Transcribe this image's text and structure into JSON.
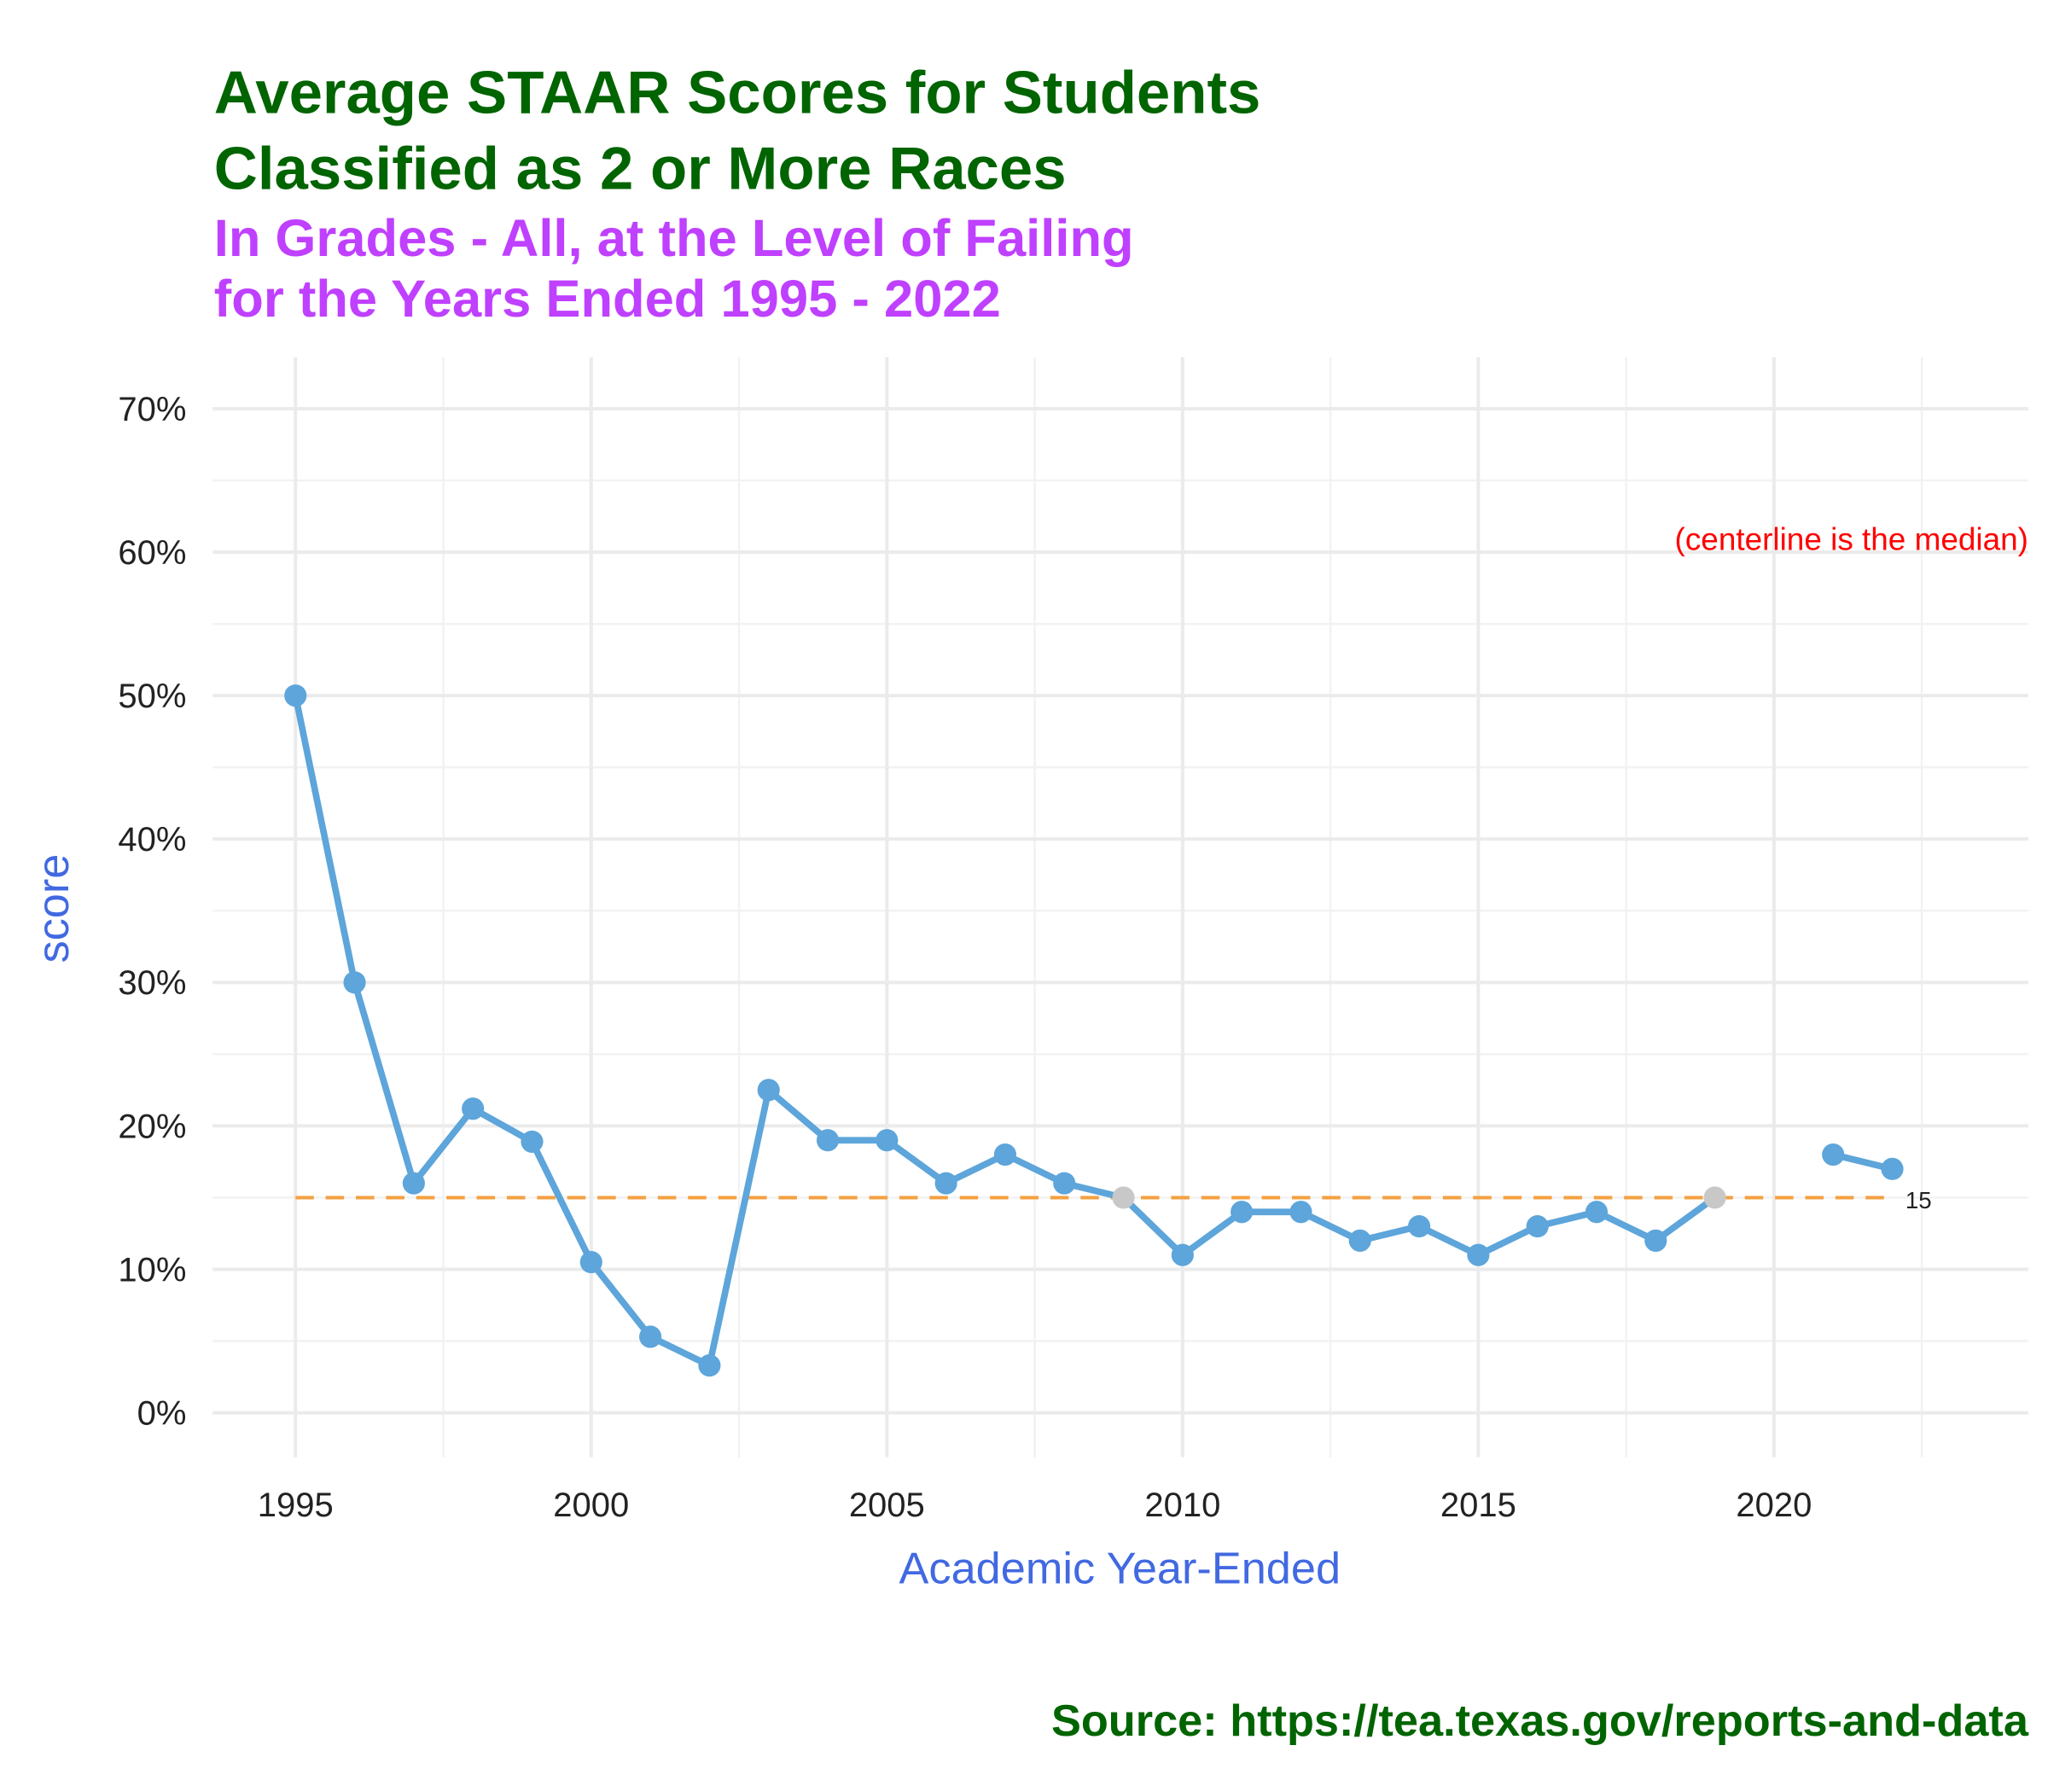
{
  "chart_data": {
    "type": "line",
    "title": [
      "Average STAAR Scores for Students",
      "Classified as 2 or More Races"
    ],
    "subtitle": [
      "In Grades - All, at the Level of Failing",
      "for the Years Ended 1995  -  2022"
    ],
    "x_label": "Academic Year-Ended",
    "y_label": "score",
    "source": "Source:  https://tea.texas.gov/reports-and-data",
    "annotation": "(centerline is the median)",
    "x": [
      1995,
      1996,
      1997,
      1998,
      1999,
      2000,
      2001,
      2002,
      2003,
      2004,
      2005,
      2006,
      2007,
      2008,
      2009,
      2010,
      2011,
      2012,
      2013,
      2014,
      2015,
      2016,
      2017,
      2018,
      2019,
      2020,
      2021,
      2022
    ],
    "series": [
      {
        "color": "#5DA5DA",
        "values": [
          50,
          30,
          16,
          21.2,
          18.9,
          10.5,
          5.3,
          3.3,
          22.5,
          19,
          19,
          16,
          18,
          16,
          15,
          11,
          14,
          14,
          12,
          13,
          11,
          13,
          14,
          12,
          15,
          null,
          18,
          17
        ],
        "point_colors": [
          "#5DA5DA",
          "#5DA5DA",
          "#5DA5DA",
          "#5DA5DA",
          "#5DA5DA",
          "#5DA5DA",
          "#5DA5DA",
          "#5DA5DA",
          "#5DA5DA",
          "#5DA5DA",
          "#5DA5DA",
          "#5DA5DA",
          "#5DA5DA",
          "#5DA5DA",
          "#C8C8C8",
          "#5DA5DA",
          "#5DA5DA",
          "#5DA5DA",
          "#5DA5DA",
          "#5DA5DA",
          "#5DA5DA",
          "#5DA5DA",
          "#5DA5DA",
          "#5DA5DA",
          "#C8C8C8",
          null,
          "#5DA5DA",
          "#5DA5DA"
        ]
      }
    ],
    "median": 15,
    "median_color": "#F5A040",
    "xlim": [
      1993.6,
      2024.3
    ],
    "ylim": [
      -3.1,
      73.6
    ],
    "xticks": [
      1995,
      2000,
      2005,
      2010,
      2015,
      2020
    ],
    "xminor": [
      1997.5,
      2002.5,
      2007.5,
      2012.5,
      2017.5,
      2022.5
    ],
    "yticks": [
      {
        "value": 0,
        "label": "0%"
      },
      {
        "value": 10,
        "label": "10%"
      },
      {
        "value": 20,
        "label": "20%"
      },
      {
        "value": 30,
        "label": "30%"
      },
      {
        "value": 40,
        "label": "40%"
      },
      {
        "value": 50,
        "label": "50%"
      },
      {
        "value": 60,
        "label": "60%"
      },
      {
        "value": 70,
        "label": "70%"
      }
    ],
    "yminor": [
      5,
      15,
      25,
      35,
      45,
      55,
      65
    ],
    "grid": true
  }
}
